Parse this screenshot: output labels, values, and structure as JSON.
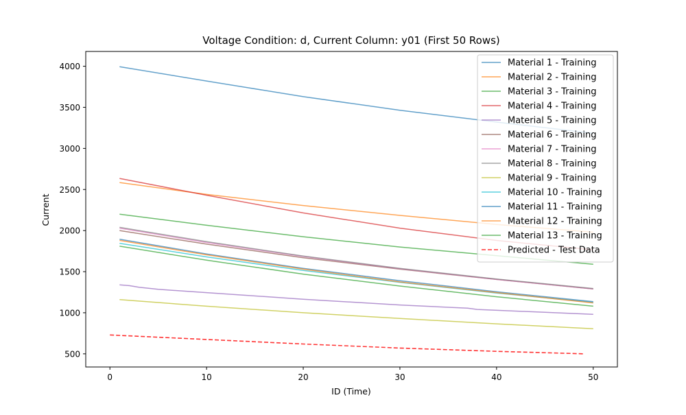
{
  "chart_data": {
    "type": "line",
    "title": "Voltage Condition: d, Current Column: y01 (First 50 Rows)",
    "xlabel": "ID (Time)",
    "ylabel": "Current",
    "xlim": [
      -2.5,
      52.5
    ],
    "ylim": [
      340,
      4180
    ],
    "xticks": [
      0,
      10,
      20,
      30,
      40,
      50
    ],
    "yticks": [
      500,
      1000,
      1500,
      2000,
      2500,
      3000,
      3500,
      4000
    ],
    "grid": false,
    "legend_position": "top-right",
    "series": [
      {
        "name": "Material 1 - Training",
        "color": "#1f77b4",
        "dash": "solid",
        "x": [
          1,
          10,
          20,
          30,
          40,
          50
        ],
        "y": [
          3995,
          3820,
          3630,
          3465,
          3320,
          3185
        ]
      },
      {
        "name": "Material 2 - Training",
        "color": "#ff7f0e",
        "dash": "solid",
        "x": [
          1,
          10,
          20,
          30,
          40,
          50
        ],
        "y": [
          2585,
          2440,
          2305,
          2185,
          2075,
          1980
        ]
      },
      {
        "name": "Material 3 - Training",
        "color": "#2ca02c",
        "dash": "solid",
        "x": [
          1,
          10,
          20,
          30,
          40,
          50
        ],
        "y": [
          2200,
          2065,
          1925,
          1800,
          1695,
          1590
        ]
      },
      {
        "name": "Material 4 - Training",
        "color": "#d62728",
        "dash": "solid",
        "x": [
          1,
          10,
          20,
          30,
          40,
          50
        ],
        "y": [
          2635,
          2430,
          2215,
          2030,
          1880,
          1765
        ]
      },
      {
        "name": "Material 5 - Training",
        "color": "#9467bd",
        "dash": "solid",
        "x": [
          1,
          2,
          3,
          5,
          10,
          20,
          30,
          37,
          38,
          50
        ],
        "y": [
          1340,
          1330,
          1310,
          1285,
          1245,
          1165,
          1095,
          1055,
          1040,
          980
        ]
      },
      {
        "name": "Material 6 - Training",
        "color": "#8c564b",
        "dash": "solid",
        "x": [
          1,
          10,
          20,
          30,
          40,
          50
        ],
        "y": [
          2000,
          1835,
          1670,
          1530,
          1405,
          1290
        ]
      },
      {
        "name": "Material 7 - Training",
        "color": "#e377c2",
        "dash": "solid",
        "x": [
          1,
          10,
          20,
          30,
          40,
          50
        ],
        "y": [
          2030,
          1855,
          1685,
          1535,
          1405,
          1290
        ]
      },
      {
        "name": "Material 8 - Training",
        "color": "#7f7f7f",
        "dash": "solid",
        "x": [
          1,
          10,
          20,
          30,
          40,
          50
        ],
        "y": [
          2040,
          1865,
          1690,
          1540,
          1410,
          1295
        ]
      },
      {
        "name": "Material 9 - Training",
        "color": "#bcbd22",
        "dash": "solid",
        "x": [
          1,
          10,
          20,
          30,
          40,
          50
        ],
        "y": [
          1160,
          1080,
          1000,
          930,
          865,
          805
        ]
      },
      {
        "name": "Material 10 - Training",
        "color": "#17becf",
        "dash": "solid",
        "x": [
          1,
          10,
          20,
          30,
          40,
          50
        ],
        "y": [
          1845,
          1680,
          1515,
          1370,
          1240,
          1125
        ]
      },
      {
        "name": "Material 11 - Training",
        "color": "#1f77b4",
        "dash": "solid",
        "x": [
          1,
          10,
          20,
          30,
          40,
          50
        ],
        "y": [
          1895,
          1715,
          1540,
          1390,
          1255,
          1135
        ]
      },
      {
        "name": "Material 12 - Training",
        "color": "#ff7f0e",
        "dash": "solid",
        "x": [
          1,
          10,
          20,
          30,
          40,
          50
        ],
        "y": [
          1880,
          1705,
          1530,
          1375,
          1245,
          1120
        ]
      },
      {
        "name": "Material 13 - Training",
        "color": "#2ca02c",
        "dash": "solid",
        "x": [
          1,
          10,
          20,
          30,
          40,
          50
        ],
        "y": [
          1810,
          1640,
          1470,
          1325,
          1195,
          1080
        ]
      },
      {
        "name": "Predicted - Test Data",
        "color": "#ff0000",
        "dash": "dashed",
        "x": [
          0,
          10,
          20,
          30,
          40,
          49
        ],
        "y": [
          730,
          675,
          620,
          570,
          530,
          500
        ]
      }
    ]
  }
}
